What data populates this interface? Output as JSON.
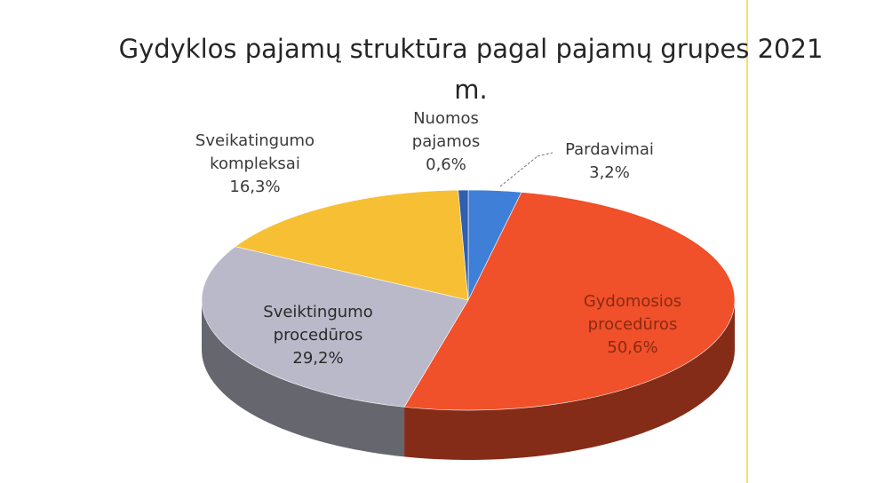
{
  "chart_data": {
    "type": "pie",
    "title": "Gydyklos pajamų struktūra pagal pajamų grupes 2021 m.",
    "categories": [
      "Pardavimai",
      "Gydomosios procedūros",
      "Sveiktingumo procedūros",
      "Sveikatingumo kompleksai",
      "Nuomos pajamos"
    ],
    "values": [
      3.2,
      50.6,
      29.2,
      16.3,
      0.6
    ],
    "value_labels": [
      "3,2%",
      "50,6%",
      "29,2%",
      "16,3%",
      "0,6%"
    ],
    "colors": [
      "#3f7fd8",
      "#f0502a",
      "#b9b9c9",
      "#f7bf33",
      "#2f5fae"
    ]
  }
}
